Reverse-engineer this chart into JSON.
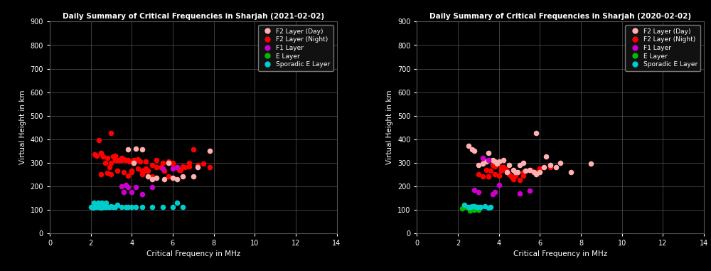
{
  "background_color": "#000000",
  "axes_background": "#000000",
  "grid_color": "#555555",
  "text_color": "#ffffff",
  "title_left": "Daily Summary of Critical Frequencies in Sharjah (2021-02-02)",
  "title_right": "Daily Summary of Critical Frequencies in Sharjah (2020-02-02)",
  "xlabel": "Critical Frequency in MHz",
  "ylabel": "Virtual Height in km",
  "xlim": [
    0,
    14
  ],
  "ylim": [
    0,
    900
  ],
  "xticks": [
    0,
    2,
    4,
    6,
    8,
    10,
    12,
    14
  ],
  "yticks": [
    0,
    100,
    200,
    300,
    400,
    500,
    600,
    700,
    800,
    900
  ],
  "legend_labels": [
    "F2 Layer (Day)",
    "F2 Layer (Night)",
    "F1 Layer",
    "E Layer",
    "Sporadic E Layer"
  ],
  "legend_colors": [
    "#ffb0b0",
    "#ff0000",
    "#cc00cc",
    "#00bb00",
    "#00cccc"
  ],
  "marker_size": 30,
  "left_f2_day_x": [
    3.8,
    4.2,
    4.5,
    4.1,
    4.8,
    5.0,
    5.2,
    5.6,
    6.0,
    6.5,
    7.0,
    7.8,
    5.8,
    6.2,
    7.2
  ],
  "left_f2_day_y": [
    355,
    360,
    355,
    300,
    240,
    230,
    235,
    230,
    235,
    240,
    240,
    350,
    300,
    230,
    280
  ],
  "left_f2_night_x": [
    2.2,
    2.3,
    2.4,
    2.5,
    2.6,
    2.7,
    2.8,
    2.9,
    3.0,
    3.0,
    3.1,
    3.2,
    3.3,
    3.4,
    3.5,
    3.6,
    3.7,
    3.8,
    3.9,
    4.0,
    4.1,
    4.2,
    4.3,
    4.4,
    4.5,
    4.6,
    4.7,
    4.8,
    5.0,
    5.2,
    5.4,
    5.6,
    5.8,
    6.0,
    6.2,
    6.4,
    6.6,
    6.8,
    7.0,
    7.2,
    7.8,
    2.5,
    2.8,
    3.2,
    3.5,
    3.8,
    4.1,
    4.5,
    5.0,
    5.5,
    6.0,
    6.5,
    7.5,
    3.0,
    3.3,
    3.6,
    4.0,
    4.3,
    4.7,
    5.2,
    5.8,
    6.3,
    6.8
  ],
  "left_f2_night_y": [
    335,
    330,
    395,
    340,
    325,
    300,
    255,
    280,
    300,
    250,
    325,
    330,
    310,
    310,
    310,
    315,
    310,
    310,
    305,
    260,
    310,
    310,
    315,
    305,
    250,
    265,
    305,
    265,
    290,
    310,
    280,
    265,
    305,
    300,
    280,
    270,
    280,
    300,
    355,
    290,
    280,
    250,
    320,
    310,
    320,
    245,
    305,
    265,
    240,
    300,
    295,
    285,
    295,
    425,
    265,
    260,
    265,
    275,
    275,
    280,
    240,
    270,
    285
  ],
  "left_f1_x": [
    3.5,
    3.6,
    3.7,
    3.8,
    4.0,
    4.2,
    4.5,
    5.0,
    5.5,
    6.0,
    6.2
  ],
  "left_f1_y": [
    200,
    175,
    205,
    195,
    175,
    195,
    165,
    195,
    275,
    275,
    280
  ],
  "left_e_x": [],
  "left_e_y": [],
  "left_sporadic_x": [
    2.0,
    2.1,
    2.2,
    2.3,
    2.4,
    2.5,
    2.6,
    2.7,
    2.8,
    2.9,
    3.0,
    3.1,
    3.2,
    3.3,
    3.5,
    3.7,
    3.8,
    4.0,
    4.2,
    4.5,
    5.0,
    5.5,
    6.0,
    6.2,
    6.5,
    2.15,
    2.35,
    2.55,
    2.75
  ],
  "left_sporadic_y": [
    110,
    108,
    110,
    112,
    110,
    108,
    110,
    110,
    110,
    110,
    115,
    110,
    110,
    120,
    110,
    112,
    110,
    110,
    112,
    110,
    110,
    110,
    110,
    130,
    110,
    130,
    130,
    130,
    130
  ],
  "right_f2_day_x": [
    2.5,
    2.7,
    2.8,
    3.0,
    3.2,
    3.4,
    3.5,
    3.7,
    3.8,
    4.0,
    4.2,
    4.5,
    4.7,
    4.8,
    5.0,
    5.2,
    5.5,
    5.7,
    6.0,
    6.2,
    6.5,
    6.8,
    7.0,
    7.5,
    8.5,
    5.8,
    6.3,
    3.9,
    4.4,
    4.9,
    5.3,
    5.8
  ],
  "right_f2_day_y": [
    370,
    355,
    350,
    290,
    295,
    305,
    340,
    310,
    305,
    305,
    310,
    290,
    270,
    260,
    290,
    300,
    270,
    260,
    260,
    280,
    290,
    280,
    300,
    260,
    295,
    425,
    325,
    295,
    260,
    260,
    265,
    250
  ],
  "right_f2_night_x": [
    3.0,
    3.2,
    3.4,
    3.5,
    3.6,
    3.7,
    3.8,
    3.9,
    4.0,
    4.1,
    4.2,
    4.3,
    4.4,
    4.5,
    4.6,
    4.7,
    4.8,
    5.0,
    5.2,
    5.5,
    5.8,
    6.0,
    6.5,
    3.2,
    3.5,
    3.8,
    4.1,
    4.4,
    4.8,
    5.2,
    5.6
  ],
  "right_f2_night_y": [
    250,
    300,
    270,
    240,
    265,
    290,
    285,
    295,
    245,
    265,
    280,
    275,
    260,
    250,
    240,
    230,
    245,
    225,
    260,
    270,
    260,
    275,
    280,
    240,
    240,
    250,
    280,
    265,
    260,
    245,
    265
  ],
  "right_f1_x": [
    2.8,
    3.0,
    3.2,
    3.5,
    3.7,
    3.8,
    4.0,
    5.0,
    5.5
  ],
  "right_f1_y": [
    185,
    175,
    320,
    310,
    165,
    175,
    205,
    170,
    180
  ],
  "right_e_x": [
    2.2,
    2.4,
    2.6,
    2.8,
    3.0
  ],
  "right_e_y": [
    105,
    110,
    95,
    98,
    100
  ],
  "right_sporadic_x": [
    2.3,
    2.5,
    2.7,
    2.9,
    3.1,
    3.3,
    3.5,
    3.6,
    2.6,
    2.8,
    3.0
  ],
  "right_sporadic_y": [
    120,
    110,
    115,
    110,
    110,
    115,
    108,
    110,
    110,
    115,
    110
  ],
  "figsize": [
    10.0,
    3.81
  ],
  "dpi": 100
}
